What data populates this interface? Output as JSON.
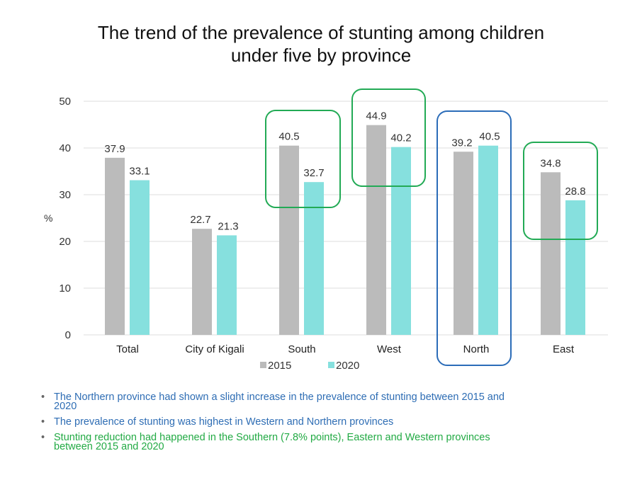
{
  "title": "The trend of the prevalence of stunting among children under five by province",
  "title_lines": [
    "The trend of the prevalence of stunting among children",
    "under five by province"
  ],
  "chart_data": {
    "type": "bar",
    "title": "The trend of the prevalence of stunting among children under five by province",
    "xlabel": "",
    "ylabel": "%",
    "ylim": [
      0,
      50
    ],
    "yticks": [
      0,
      10,
      20,
      30,
      40,
      50
    ],
    "grid": true,
    "legend_position": "bottom",
    "categories": [
      "Total",
      "City of Kigali",
      "South",
      "West",
      "North",
      "East"
    ],
    "series": [
      {
        "name": "2015",
        "color": "#bbbbbb",
        "values": [
          37.9,
          22.7,
          40.5,
          44.9,
          39.2,
          34.8
        ]
      },
      {
        "name": "2020",
        "color": "#86e0de",
        "values": [
          33.1,
          21.3,
          32.7,
          40.2,
          40.5,
          28.8
        ]
      }
    ],
    "annotations": [
      {
        "category": "South",
        "type": "highlight-box",
        "color": "#22aa55",
        "covers": "upper part of both bars"
      },
      {
        "category": "West",
        "type": "highlight-box",
        "color": "#22aa55",
        "covers": "upper part of both bars"
      },
      {
        "category": "North",
        "type": "highlight-box",
        "color": "#2b6cb8",
        "covers": "whole group incl. label"
      },
      {
        "category": "East",
        "type": "highlight-box",
        "color": "#22aa55",
        "covers": "upper part of both bars"
      }
    ]
  },
  "bullets": [
    {
      "text": "The Northern province had shown a slight increase in the prevalence of stunting between 2015 and 2020",
      "lines": [
        "The Northern province had shown a slight increase in the prevalence of stunting between 2015 and",
        "2020"
      ],
      "color": "#2e6db4"
    },
    {
      "text": "The prevalence of stunting was highest in Western and Northern provinces",
      "lines": [
        "The prevalence of stunting was highest in Western and Northern provinces"
      ],
      "color": "#2e6db4"
    },
    {
      "text": "Stunting reduction had happened in the Southern (7.8% points), Eastern and Western provinces between 2015 and 2020",
      "lines": [
        "Stunting reduction had happened in the Southern (7.8% points), Eastern and Western provinces",
        "between 2015 and 2020"
      ],
      "color": "#22aa44"
    }
  ],
  "bullet_glyph": "•"
}
